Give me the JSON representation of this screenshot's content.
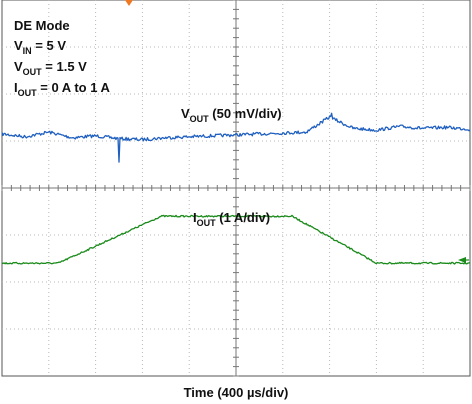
{
  "chart_data": {
    "type": "line",
    "grid": true,
    "x_divisions": 10,
    "y_divisions": 8,
    "xlabel": "Time (400 µs/div)",
    "conditions": [
      {
        "main": "DE Mode",
        "sub": "",
        "rest": ""
      },
      {
        "main": "V",
        "sub": "IN",
        "rest": " = 5 V"
      },
      {
        "main": "V",
        "sub": "OUT",
        "rest": " = 1.5 V"
      },
      {
        "main": "I",
        "sub": "OUT",
        "rest": " = 0 A to 1 A"
      }
    ],
    "series": [
      {
        "name": "VOUT",
        "label_main": "V",
        "label_sub": "OUT",
        "label_rest": " (50 mV/div)",
        "color": "#1f5fbf",
        "unit": "mV",
        "scale_per_div": 50,
        "baseline_div": 5.15,
        "x": [
          0.0,
          0.5,
          1.0,
          1.5,
          2.0,
          2.5,
          3.0,
          3.5,
          4.0,
          4.5,
          5.0,
          5.5,
          6.0,
          6.5,
          7.0,
          7.5,
          8.0,
          8.5,
          9.0,
          9.5,
          10.0
        ],
        "y": [
          0,
          -3,
          2,
          -4,
          -2,
          -5,
          -6,
          -4,
          -3,
          -2,
          -1,
          0,
          1,
          2,
          18,
          6,
          4,
          8,
          6,
          7,
          5
        ],
        "spikes": [
          {
            "x": 2.5,
            "y": -30
          },
          {
            "x": 7.05,
            "y": 22
          }
        ]
      },
      {
        "name": "IOUT",
        "label_main": "I",
        "label_sub": "OUT",
        "label_rest": " (1 A/div)",
        "color": "#1a8a1a",
        "unit": "A",
        "scale_per_div": 1,
        "baseline_div": 2.4,
        "x": [
          0.0,
          1.2,
          3.4,
          6.2,
          8.0,
          10.0
        ],
        "y": [
          0,
          0,
          1,
          1,
          0,
          0
        ]
      }
    ]
  }
}
